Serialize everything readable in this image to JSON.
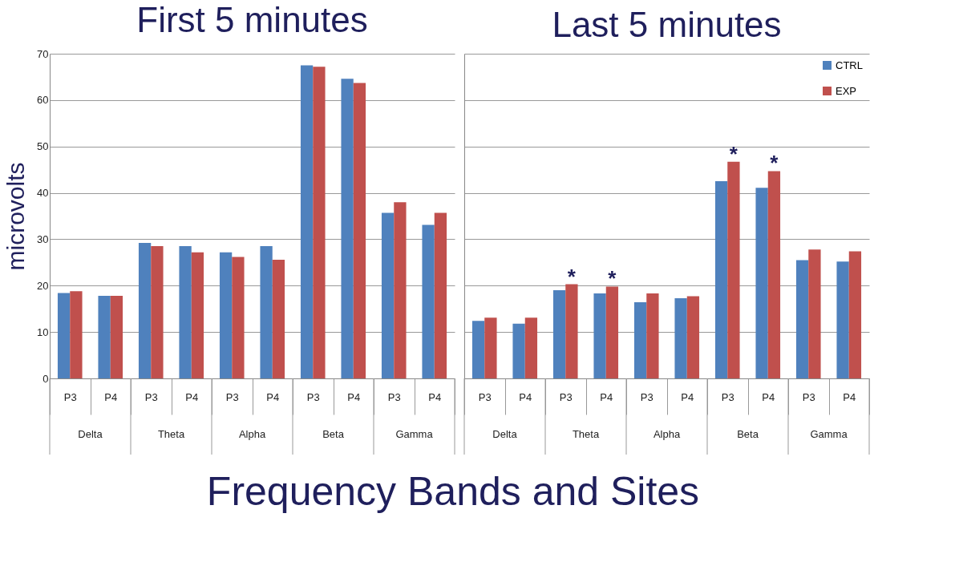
{
  "chart_data": [
    {
      "type": "bar",
      "title": "First 5 minutes",
      "ylabel": "microvolts",
      "xlabel": "Frequency Bands and Sites",
      "categories": [
        "P3",
        "P4",
        "P3",
        "P4",
        "P3",
        "P4",
        "P3",
        "P4",
        "P3",
        "P4"
      ],
      "series": [
        {
          "color": "#4f81bd",
          "values": [
            18.4,
            17.8,
            29.2,
            28.5,
            27.2,
            28.5,
            67.5,
            64.6,
            35.7,
            33.1
          ]
        },
        {
          "color": "#c0504d",
          "values": [
            18.8,
            17.8,
            28.5,
            27.2,
            26.2,
            25.6,
            67.2,
            63.7,
            38.0,
            35.7
          ]
        }
      ],
      "annotations": [
        "Delta",
        "Theta",
        "Alpha",
        "Beta",
        "Gamma"
      ],
      "ylim": [
        0,
        70
      ],
      "yticks": [
        0,
        10,
        20,
        30,
        40,
        50,
        60,
        70
      ],
      "grid": "y",
      "legend": false
    },
    {
      "type": "bar",
      "title": "Last 5 minutes",
      "categories": [
        "P3",
        "P4",
        "P3",
        "P4",
        "P3",
        "P4",
        "P3",
        "P4",
        "P3",
        "P4"
      ],
      "series": [
        {
          "name": "CTRL",
          "color": "#4f81bd",
          "values": [
            12.4,
            11.8,
            19.0,
            18.3,
            16.4,
            17.3,
            42.5,
            41.1,
            25.5,
            25.2
          ]
        },
        {
          "name": "EXP",
          "color": "#c0504d",
          "values": [
            13.1,
            13.1,
            20.3,
            19.8,
            18.3,
            17.7,
            46.7,
            44.7,
            27.8,
            27.4
          ],
          "value_labels": [
            null,
            null,
            "*",
            "*",
            null,
            null,
            "*",
            "*",
            null,
            null
          ]
        }
      ],
      "annotations": [
        "Delta",
        "Theta",
        "Alpha",
        "Beta",
        "Gamma"
      ],
      "ylim": [
        0,
        70
      ],
      "yticks": [
        0,
        10,
        20,
        30,
        40,
        50,
        60,
        70
      ],
      "grid": "y",
      "legend": "top right",
      "tick_labels": "x"
    }
  ]
}
